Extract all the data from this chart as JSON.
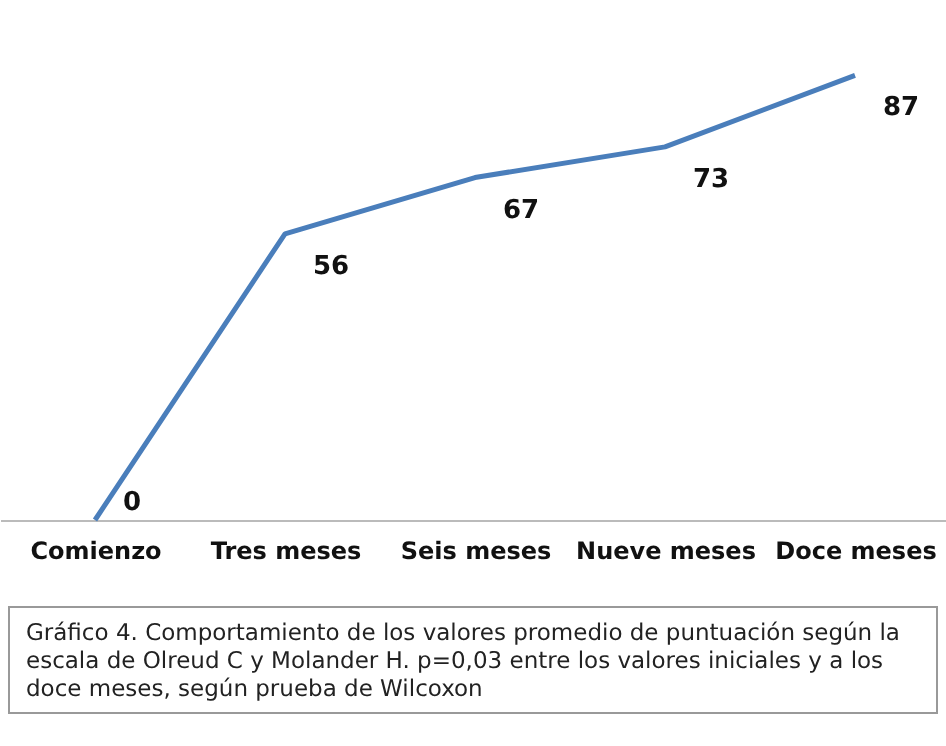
{
  "chart_data": {
    "type": "line",
    "categories": [
      "Comienzo",
      "Tres meses",
      "Seis meses",
      "Nueve meses",
      "Doce meses"
    ],
    "series": [
      {
        "color": "#4a7ebb",
        "values": [
          0,
          56,
          67,
          73,
          87
        ]
      }
    ],
    "data_labels": true,
    "marker": "none",
    "line_style": "solid",
    "grid": false,
    "tick_labels": "x",
    "annotations": [
      "Gráfico 4. Comportamiento de los valores promedio de puntuación según la escala de Olreud C y Molander H. p=0,03 entre los valores iniciales y a los doce meses, según prueba de Wilcoxon"
    ]
  }
}
